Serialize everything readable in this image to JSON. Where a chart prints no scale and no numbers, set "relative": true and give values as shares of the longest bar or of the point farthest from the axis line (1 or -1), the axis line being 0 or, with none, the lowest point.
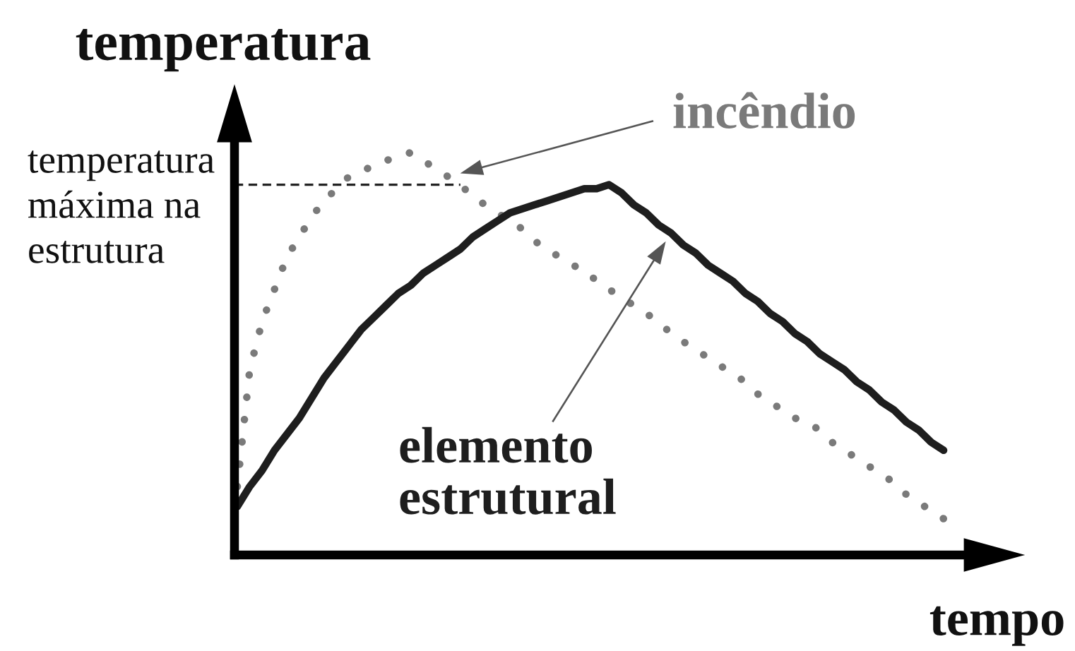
{
  "chart_data": {
    "type": "line",
    "relative": true,
    "xlabel": "tempo",
    "ylabel": "temperatura",
    "categories": [
      null,
      null,
      null,
      null,
      null,
      null,
      null,
      null,
      null,
      null,
      null,
      null,
      null,
      null,
      null,
      null,
      null,
      null,
      null,
      null,
      null,
      null,
      null,
      null,
      null,
      null,
      null,
      null,
      null,
      null,
      null,
      null,
      null,
      null,
      null,
      null,
      null,
      null,
      null,
      null,
      null,
      null,
      null,
      null,
      null,
      null,
      null,
      null,
      null,
      null,
      null,
      null,
      null,
      null,
      null,
      null,
      null,
      null
    ],
    "series": [
      {
        "name": "incêndio",
        "color": "#7a7a7a",
        "line_style": "dotted",
        "values": [
          0.17,
          0.46,
          0.58,
          0.66,
          0.74,
          0.79,
          0.84,
          0.88,
          0.91,
          0.94,
          0.95,
          0.97,
          0.98,
          0.99,
          1.0,
          0.98,
          0.96,
          0.94,
          0.92,
          0.89,
          0.87,
          0.85,
          0.83,
          0.81,
          0.78,
          0.76,
          0.74,
          0.72,
          0.71,
          0.68,
          0.66,
          0.64,
          0.62,
          0.6,
          0.58,
          0.55,
          0.53,
          0.51,
          0.49,
          0.47,
          0.45,
          0.43,
          0.4,
          0.38,
          0.36,
          0.34,
          0.33,
          0.31,
          0.28,
          0.26,
          0.24,
          0.22,
          0.2,
          0.18,
          0.15,
          0.13,
          0.11,
          0.09
        ]
      },
      {
        "name": "elemento\nestrutural",
        "color": "#1e1e1e",
        "line_style": "solid",
        "values": [
          0.12,
          0.17,
          0.21,
          0.26,
          0.3,
          0.34,
          0.39,
          0.44,
          0.48,
          0.52,
          0.56,
          0.59,
          0.62,
          0.65,
          0.67,
          0.7,
          0.72,
          0.74,
          0.76,
          0.79,
          0.81,
          0.83,
          0.85,
          0.86,
          0.87,
          0.88,
          0.89,
          0.9,
          0.91,
          0.91,
          0.92,
          0.9,
          0.87,
          0.85,
          0.82,
          0.8,
          0.77,
          0.75,
          0.72,
          0.7,
          0.68,
          0.65,
          0.63,
          0.6,
          0.58,
          0.55,
          0.53,
          0.5,
          0.48,
          0.46,
          0.43,
          0.41,
          0.38,
          0.36,
          0.33,
          0.31,
          0.28,
          0.26
        ]
      }
    ],
    "ref_lines": [
      {
        "axis": "y",
        "value": 0.92,
        "label": "temperatura\nmáxima na\nestrutura",
        "color": "#222222",
        "line_style": "dashed"
      }
    ]
  }
}
